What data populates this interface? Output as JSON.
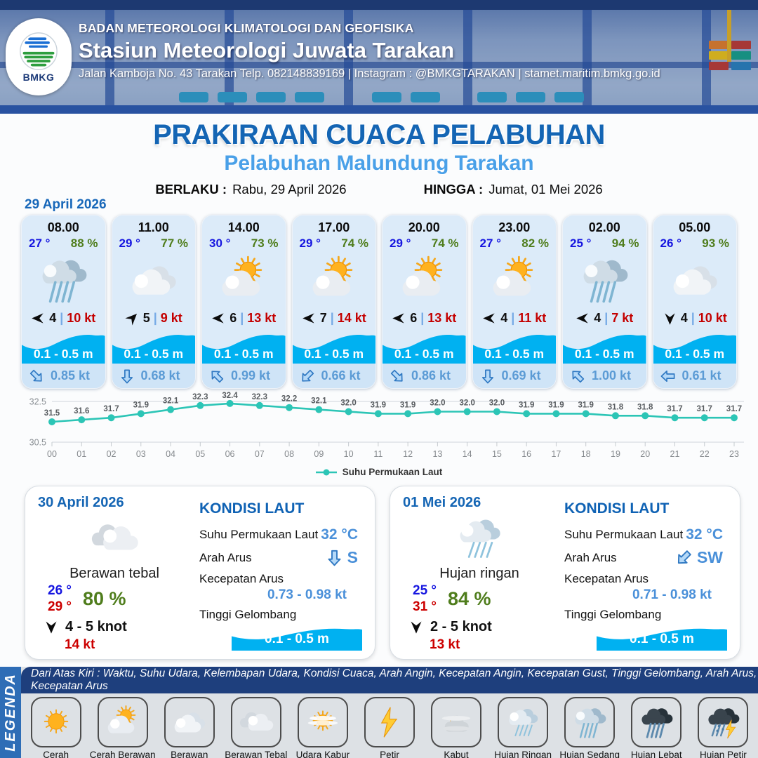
{
  "colors": {
    "accent_blue": "#1465b4",
    "subtitle_blue": "#49a0e8",
    "temp_blue": "#1616e0",
    "humidity_green": "#4f7d1c",
    "speed_red": "#c40000",
    "wave_blue": "#00b1f1",
    "current_blue": "#5b9bd5",
    "chart_teal": "#2cc5b6",
    "header_navy": "#1e3f7d"
  },
  "header": {
    "logo_label": "BMKG",
    "org": "BADAN METEOROLOGI KLIMATOLOGI DAN GEOFISIKA",
    "station": "Stasiun Meteorologi Juwata Tarakan",
    "address": "Jalan Kamboja No. 43 Tarakan  Telp. 082148839169 | Instagram : @BMKGTARAKAN | stamet.maritim.bmkg.go.id"
  },
  "title": {
    "main": "PRAKIRAAN CUACA PELABUHAN",
    "subtitle": "Pelabuhan Malundung Tarakan",
    "valid_from_label": "BERLAKU :",
    "valid_from": "Rabu, 29 April 2026",
    "valid_to_label": "HINGGA :",
    "valid_to": "Jumat, 01 Mei 2026"
  },
  "forecast_date": "29 April 2026",
  "hourly": [
    {
      "time": "08.00",
      "temp": "27 °",
      "humidity": "88 %",
      "icon": "hujan-sedang",
      "wind_dir": "W",
      "wind_force": "4",
      "wind_speed": "10 kt",
      "wave_height": "0.1 - 0.5 m",
      "current_dir": "SE",
      "current_speed": "0.85 kt"
    },
    {
      "time": "11.00",
      "temp": "29 °",
      "humidity": "77 %",
      "icon": "berawan",
      "wind_dir": "NE",
      "wind_force": "5",
      "wind_speed": "9 kt",
      "wave_height": "0.1 - 0.5 m",
      "current_dir": "S",
      "current_speed": "0.68 kt"
    },
    {
      "time": "14.00",
      "temp": "30 °",
      "humidity": "73 %",
      "icon": "cerah-berawan",
      "wind_dir": "W",
      "wind_force": "6",
      "wind_speed": "13 kt",
      "wave_height": "0.1 - 0.5 m",
      "current_dir": "NW",
      "current_speed": "0.99 kt"
    },
    {
      "time": "17.00",
      "temp": "29 °",
      "humidity": "74 %",
      "icon": "cerah-berawan",
      "wind_dir": "W",
      "wind_force": "7",
      "wind_speed": "14 kt",
      "wave_height": "0.1 - 0.5 m",
      "current_dir": "SW",
      "current_speed": "0.66 kt"
    },
    {
      "time": "20.00",
      "temp": "29 °",
      "humidity": "74 %",
      "icon": "cerah-berawan",
      "wind_dir": "W",
      "wind_force": "6",
      "wind_speed": "13 kt",
      "wave_height": "0.1 - 0.5 m",
      "current_dir": "SE",
      "current_speed": "0.86 kt"
    },
    {
      "time": "23.00",
      "temp": "27 °",
      "humidity": "82 %",
      "icon": "cerah-berawan",
      "wind_dir": "W",
      "wind_force": "4",
      "wind_speed": "11 kt",
      "wave_height": "0.1 - 0.5 m",
      "current_dir": "S",
      "current_speed": "0.69 kt"
    },
    {
      "time": "02.00",
      "temp": "25 °",
      "humidity": "94 %",
      "icon": "hujan-sedang",
      "wind_dir": "W",
      "wind_force": "4",
      "wind_speed": "7 kt",
      "wave_height": "0.1 - 0.5 m",
      "current_dir": "NW",
      "current_speed": "1.00 kt"
    },
    {
      "time": "05.00",
      "temp": "26 °",
      "humidity": "93 %",
      "icon": "berawan",
      "wind_dir": "S",
      "wind_force": "4",
      "wind_speed": "10 kt",
      "wave_height": "0.1 - 0.5 m",
      "current_dir": "W",
      "current_speed": "0.61 kt"
    }
  ],
  "chart_data": {
    "type": "line",
    "x": [
      "00",
      "01",
      "02",
      "03",
      "04",
      "05",
      "06",
      "07",
      "08",
      "09",
      "10",
      "11",
      "12",
      "13",
      "14",
      "15",
      "16",
      "17",
      "18",
      "19",
      "20",
      "21",
      "22",
      "23"
    ],
    "series": [
      {
        "name": "Suhu Permukaan Laut",
        "color": "#2cc5b6",
        "values": [
          31.5,
          31.6,
          31.7,
          31.9,
          32.1,
          32.3,
          32.4,
          32.3,
          32.2,
          32.1,
          32.0,
          31.9,
          31.9,
          32.0,
          32.0,
          32.0,
          31.9,
          31.9,
          31.9,
          31.8,
          31.8,
          31.7,
          31.7,
          31.7
        ]
      }
    ],
    "ylim": [
      30.5,
      32.5
    ],
    "yticks": [
      32.5,
      30.5
    ],
    "grid": true,
    "legend_position": "bottom"
  },
  "daily": [
    {
      "date": "30 April 2026",
      "icon": "berawan-tebal",
      "condition": "Berawan tebal",
      "temp_min": "26 °",
      "temp_max": "29 °",
      "humidity": "80 %",
      "wind_dir": "S",
      "wind_range": "4  - 5 knot",
      "gust": "14 kt",
      "sea": {
        "title": "KONDISI LAUT",
        "sst_label": "Suhu Permukaan Laut",
        "sst": "32 °C",
        "dir_label": "Arah Arus",
        "dir": "S",
        "speed_label": "Kecepatan Arus",
        "speed": "0.73 - 0.98 kt",
        "wave_label": "Tinggi Gelombang",
        "wave": "0.1 - 0.5 m"
      }
    },
    {
      "date": "01 Mei 2026",
      "icon": "hujan-ringan",
      "condition": "Hujan ringan",
      "temp_min": "25 °",
      "temp_max": "31 °",
      "humidity": "84 %",
      "wind_dir": "S",
      "wind_range": "2  - 5 knot",
      "gust": "13 kt",
      "sea": {
        "title": "KONDISI LAUT",
        "sst_label": "Suhu Permukaan Laut",
        "sst": "32 °C",
        "dir_label": "Arah Arus",
        "dir": "SW",
        "speed_label": "Kecepatan Arus",
        "speed": "0.71 - 0.98 kt",
        "wave_label": "Tinggi Gelombang",
        "wave": "0.1 - 0.5 m"
      }
    }
  ],
  "legend": {
    "vertical_label": "LEGENDA",
    "description": "Dari Atas Kiri : Waktu, Suhu Udara, Kelembapan Udara, Kondisi Cuaca, Arah Angin, Kecepatan Angin, Kecepatan Gust, Tinggi Gelombang, Arah Arus, Kecepatan Arus",
    "items": [
      {
        "icon": "cerah",
        "label": "Cerah"
      },
      {
        "icon": "cerah-berawan",
        "label": "Cerah Berawan"
      },
      {
        "icon": "berawan",
        "label": "Berawan"
      },
      {
        "icon": "berawan-tebal",
        "label": "Berawan Tebal"
      },
      {
        "icon": "udara-kabur",
        "label": "Udara Kabur"
      },
      {
        "icon": "petir",
        "label": "Petir"
      },
      {
        "icon": "kabut",
        "label": "Kabut"
      },
      {
        "icon": "hujan-ringan",
        "label": "Hujan Ringan"
      },
      {
        "icon": "hujan-sedang",
        "label": "Hujan Sedang"
      },
      {
        "icon": "hujan-lebat",
        "label": "Hujan Lebat"
      },
      {
        "icon": "hujan-petir",
        "label": "Hujan Petir"
      }
    ]
  }
}
